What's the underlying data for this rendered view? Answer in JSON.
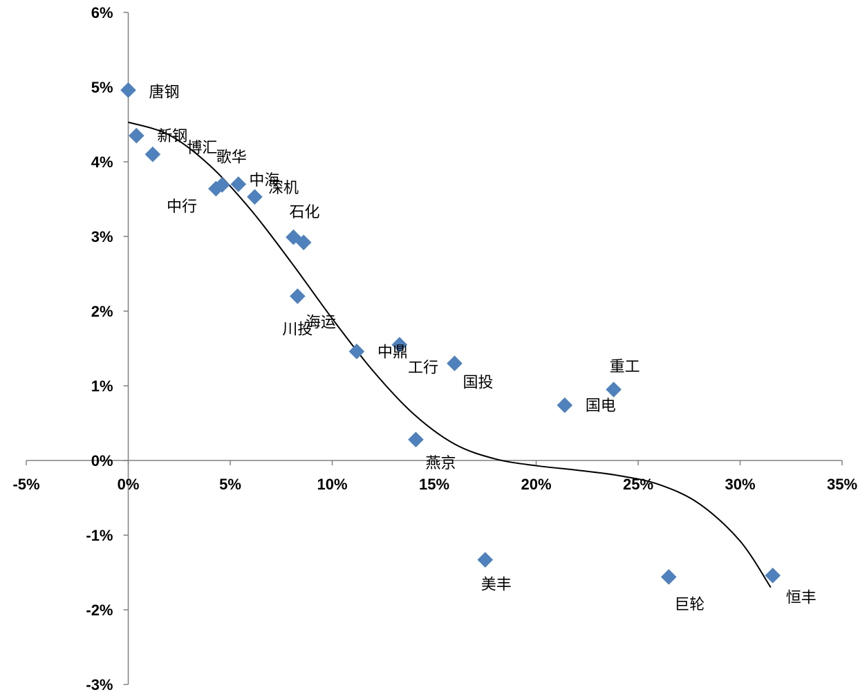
{
  "chart_data": {
    "type": "scatter",
    "title": "",
    "xlabel": "",
    "ylabel": "",
    "xlim": [
      -5,
      35
    ],
    "ylim": [
      -3,
      6
    ],
    "x_ticks": [
      -5,
      0,
      5,
      10,
      15,
      20,
      25,
      30,
      35
    ],
    "y_ticks": [
      -3,
      -2,
      -1,
      0,
      1,
      2,
      3,
      4,
      5,
      6
    ],
    "x_tick_labels": [
      "-5%",
      "0%",
      "5%",
      "10%",
      "15%",
      "20%",
      "25%",
      "30%",
      "35%"
    ],
    "y_tick_labels": [
      "-3%",
      "-2%",
      "-1%",
      "0%",
      "1%",
      "2%",
      "3%",
      "4%",
      "5%",
      "6%"
    ],
    "marker_color": "#4F81BD",
    "trendline_color": "#000000",
    "series": [
      {
        "points": [
          {
            "label": "唐钢",
            "x": 0.0,
            "y": 4.96
          },
          {
            "label": "新钢",
            "x": 0.4,
            "y": 4.35
          },
          {
            "label": "",
            "x": 1.2,
            "y": 4.1
          },
          {
            "label": "博汇",
            "x": 4.3,
            "y": 3.64
          },
          {
            "label": "",
            "x": 4.6,
            "y": 3.69
          },
          {
            "label": "歌华",
            "x": 5.4,
            "y": 3.7
          },
          {
            "label": "中海",
            "x": 6.2,
            "y": 3.53
          },
          {
            "label": "中行",
            "x": null,
            "y": null
          },
          {
            "label": "深机",
            "x": null,
            "y": null
          },
          {
            "label": "石化",
            "x": 8.1,
            "y": 2.99
          },
          {
            "label": "",
            "x": 8.6,
            "y": 2.92
          },
          {
            "label": "川投",
            "x": 8.3,
            "y": 2.2
          },
          {
            "label": "海运",
            "x": 11.2,
            "y": 1.46
          },
          {
            "label": "中鼎",
            "x": 13.3,
            "y": 1.55
          },
          {
            "label": "工行",
            "x": null,
            "y": null
          },
          {
            "label": "国投",
            "x": 16.0,
            "y": 1.3
          },
          {
            "label": "燕京",
            "x": 14.1,
            "y": 0.28
          },
          {
            "label": "国电",
            "x": 21.4,
            "y": 0.74
          },
          {
            "label": "重工",
            "x": 23.8,
            "y": 0.95
          },
          {
            "label": "美丰",
            "x": 17.5,
            "y": -1.33
          },
          {
            "label": "巨轮",
            "x": 26.5,
            "y": -1.56
          },
          {
            "label": "恒丰",
            "x": 31.6,
            "y": -1.54
          }
        ]
      }
    ],
    "trendline": {
      "x": [
        0,
        2,
        4,
        6,
        8,
        10,
        12,
        14,
        16,
        18,
        20,
        22,
        24,
        26,
        28,
        30,
        31.5
      ],
      "y": [
        4.53,
        4.36,
        3.95,
        3.36,
        2.65,
        1.9,
        1.2,
        0.62,
        0.22,
        0.02,
        -0.07,
        -0.13,
        -0.2,
        -0.32,
        -0.58,
        -1.08,
        -1.7
      ]
    }
  }
}
